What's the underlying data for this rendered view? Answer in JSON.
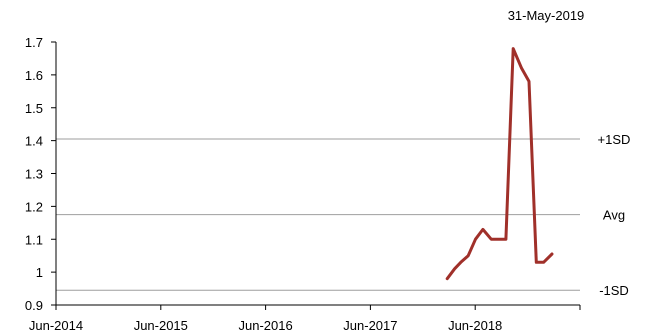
{
  "chart_data": {
    "type": "line",
    "title": "",
    "xlabel": "",
    "ylabel": "",
    "annotation": "31-May-2019",
    "x_ticks": [
      "Jun-2014",
      "Jun-2015",
      "Jun-2016",
      "Jun-2017",
      "Jun-2018"
    ],
    "x_tick_years": [
      2014.417,
      2015.417,
      2016.417,
      2017.417,
      2018.417
    ],
    "xlim": [
      2014.417,
      2019.417
    ],
    "ylim": [
      0.9,
      1.7
    ],
    "y_ticks": [
      "0.9",
      "1",
      "1.1",
      "1.2",
      "1.3",
      "1.4",
      "1.5",
      "1.6",
      "1.7"
    ],
    "y_tick_values": [
      0.9,
      1.0,
      1.1,
      1.2,
      1.3,
      1.4,
      1.5,
      1.6,
      1.7
    ],
    "reference_lines": [
      {
        "label": "+1SD",
        "value": 1.405
      },
      {
        "label": "Avg",
        "value": 1.175
      },
      {
        "label": "-1SD",
        "value": 0.945
      }
    ],
    "series": [
      {
        "color": "#A0302A",
        "x": [
          2018.15,
          2018.22,
          2018.28,
          2018.35,
          2018.42,
          2018.49,
          2018.57,
          2018.64,
          2018.71,
          2018.78,
          2018.86,
          2018.93,
          2019.0,
          2019.07,
          2019.15,
          2019.22,
          2019.29,
          2019.36,
          2019.42
        ],
        "y": [
          0.98,
          1.01,
          1.03,
          1.05,
          1.1,
          1.13,
          1.1,
          1.1,
          1.1,
          1.68,
          1.62,
          1.58,
          1.03,
          1.03,
          1.055,
          null,
          null,
          null,
          null
        ]
      }
    ]
  }
}
